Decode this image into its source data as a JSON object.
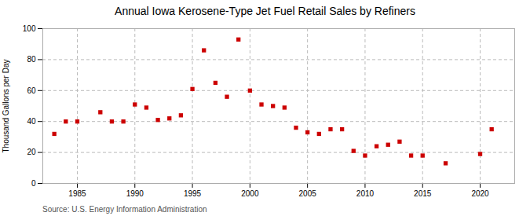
{
  "chart_data": {
    "type": "scatter",
    "title": "Annual Iowa Kerosene-Type Jet Fuel Retail Sales by Refiners",
    "ylabel": "Thousand Gallons per Day",
    "source": "Source: U.S. Energy Information Administration",
    "x": [
      1983,
      1984,
      1985,
      1987,
      1988,
      1989,
      1990,
      1991,
      1992,
      1993,
      1994,
      1995,
      1996,
      1997,
      1998,
      1999,
      2000,
      2001,
      2002,
      2003,
      2004,
      2005,
      2006,
      2007,
      2008,
      2009,
      2010,
      2011,
      2012,
      2013,
      2014,
      2015,
      2017,
      2020,
      2021
    ],
    "values": [
      32,
      40,
      40,
      46,
      40,
      40,
      51,
      49,
      41,
      42,
      44,
      61,
      86,
      65,
      56,
      93,
      60,
      51,
      50,
      49,
      36,
      33,
      32,
      35,
      35,
      21,
      18,
      24,
      25,
      27,
      18,
      18,
      13,
      19,
      35
    ],
    "color": "#cc0000",
    "marker": "square",
    "xlim": [
      1982,
      2023
    ],
    "ylim": [
      0,
      100
    ],
    "xticks": [
      1985,
      1990,
      1995,
      2000,
      2005,
      2010,
      2015,
      2020
    ],
    "yticks": [
      0,
      20,
      40,
      60,
      80,
      100
    ],
    "grid": true
  }
}
